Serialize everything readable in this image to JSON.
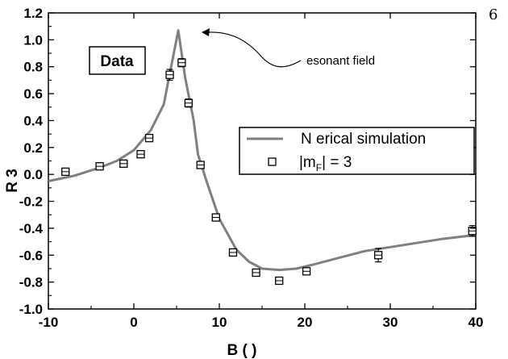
{
  "page_number": "6",
  "chart_data": {
    "type": "scatter",
    "xlabel": "B (     )",
    "ylabel": "R  3",
    "xlim": [
      -10,
      40
    ],
    "ylim": [
      -1.0,
      1.2
    ],
    "x_ticks": [
      -10,
      0,
      10,
      20,
      30,
      40
    ],
    "x_tick_labels": [
      "-10",
      "0",
      "10",
      "20",
      "30",
      "40"
    ],
    "y_ticks": [
      -1.0,
      -0.8,
      -0.6,
      -0.4,
      -0.2,
      0.0,
      0.2,
      0.4,
      0.6,
      0.8,
      1.0,
      1.2
    ],
    "y_tick_labels": [
      "-1.0",
      "-0.8",
      "-0.6",
      "-0.4",
      "-0.2",
      "0.0",
      "0.2",
      "0.4",
      "0.6",
      "0.8",
      "1.0",
      "1.2"
    ],
    "grid": false,
    "legend_position": "right",
    "series": [
      {
        "name": "N     erical simulation",
        "kind": "line",
        "color": "#808080",
        "x": [
          -10,
          -7,
          -4,
          -2,
          0,
          2,
          3.5,
          5.2,
          6,
          7,
          7.5,
          8.5,
          10,
          12,
          13.5,
          15,
          17,
          19,
          21,
          24,
          27,
          30,
          33,
          36,
          40
        ],
        "y": [
          -0.05,
          -0.01,
          0.05,
          0.1,
          0.18,
          0.33,
          0.52,
          1.07,
          0.72,
          0.4,
          0.15,
          -0.05,
          -0.33,
          -0.56,
          -0.65,
          -0.7,
          -0.71,
          -0.7,
          -0.67,
          -0.62,
          -0.57,
          -0.54,
          -0.51,
          -0.48,
          -0.45
        ]
      },
      {
        "name": "|m_F| = 3",
        "kind": "points",
        "color": "#000000",
        "x": [
          -8,
          -4,
          -1.2,
          0.8,
          1.8,
          4.2,
          5.6,
          6.4,
          7.8,
          9.6,
          11.6,
          14.3,
          17,
          20.2,
          28.6,
          39.6
        ],
        "y": [
          0.02,
          0.06,
          0.08,
          0.15,
          0.27,
          0.74,
          0.83,
          0.53,
          0.07,
          -0.32,
          -0.58,
          -0.73,
          -0.79,
          -0.72,
          -0.6,
          -0.42
        ],
        "err": [
          0.02,
          0.02,
          0.02,
          0.02,
          0.02,
          0.04,
          0.03,
          0.03,
          0.02,
          0.02,
          0.02,
          0.02,
          0.02,
          0.02,
          0.05,
          0.04
        ]
      }
    ],
    "legend": {
      "line_label": "N     erical simulation",
      "marker_label_prefix": "|m",
      "marker_label_sub": "F",
      "marker_label_suffix": "| = 3"
    },
    "annotations": {
      "data_box": "Data",
      "resonant_field": "esonant field",
      "arrow_target": {
        "x": 5.2,
        "y": 1.07
      }
    }
  }
}
